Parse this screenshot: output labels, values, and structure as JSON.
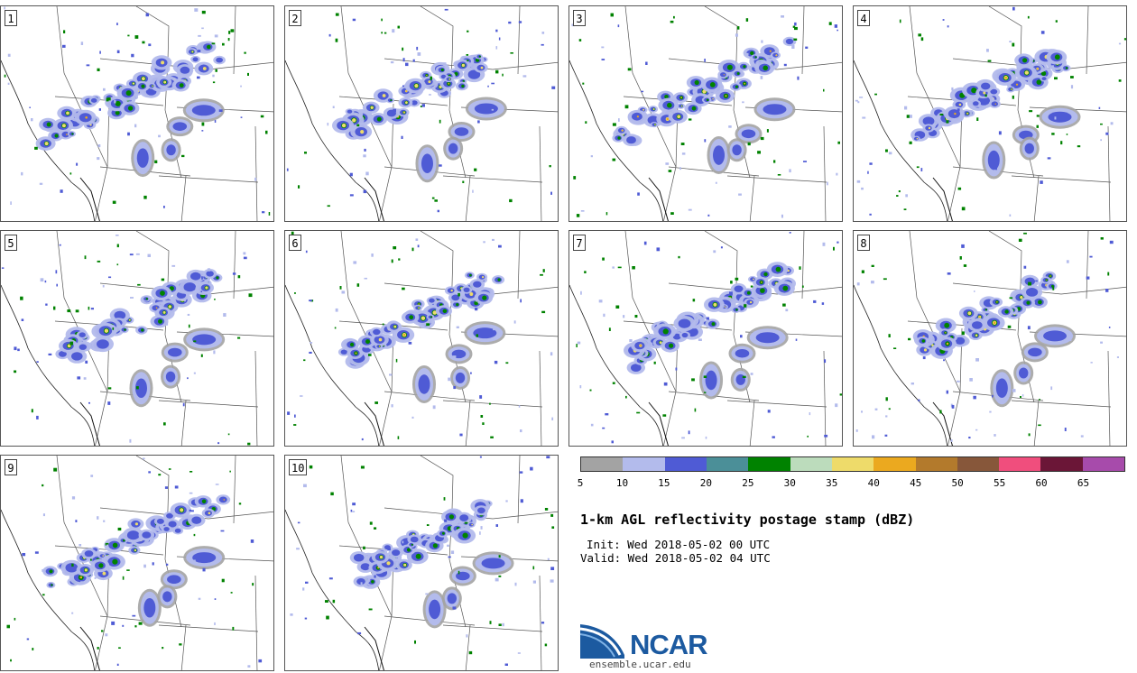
{
  "panels": [
    {
      "label": "1"
    },
    {
      "label": "2"
    },
    {
      "label": "3"
    },
    {
      "label": "4"
    },
    {
      "label": "5"
    },
    {
      "label": "6"
    },
    {
      "label": "7"
    },
    {
      "label": "8"
    },
    {
      "label": "9"
    },
    {
      "label": "10"
    }
  ],
  "legend": {
    "colors": [
      "#a3a3a3",
      "#b3bbec",
      "#4f5bd5",
      "#4b8f98",
      "#008200",
      "#bcdcbc",
      "#eedb6a",
      "#eba91f",
      "#b37a2c",
      "#87573a",
      "#f04e7d",
      "#6b1637",
      "#a74bab"
    ],
    "ticks": [
      "5",
      "10",
      "15",
      "20",
      "25",
      "30",
      "35",
      "40",
      "45",
      "50",
      "55",
      "60",
      "65"
    ]
  },
  "title": "1-km AGL reflectivity postage stamp (dBZ)",
  "init": "Init: Wed 2018-05-02 00 UTC",
  "valid": "Valid: Wed 2018-05-02 04 UTC",
  "logo": {
    "wordmark": "NCAR",
    "url": "ensemble.ucar.edu"
  }
}
